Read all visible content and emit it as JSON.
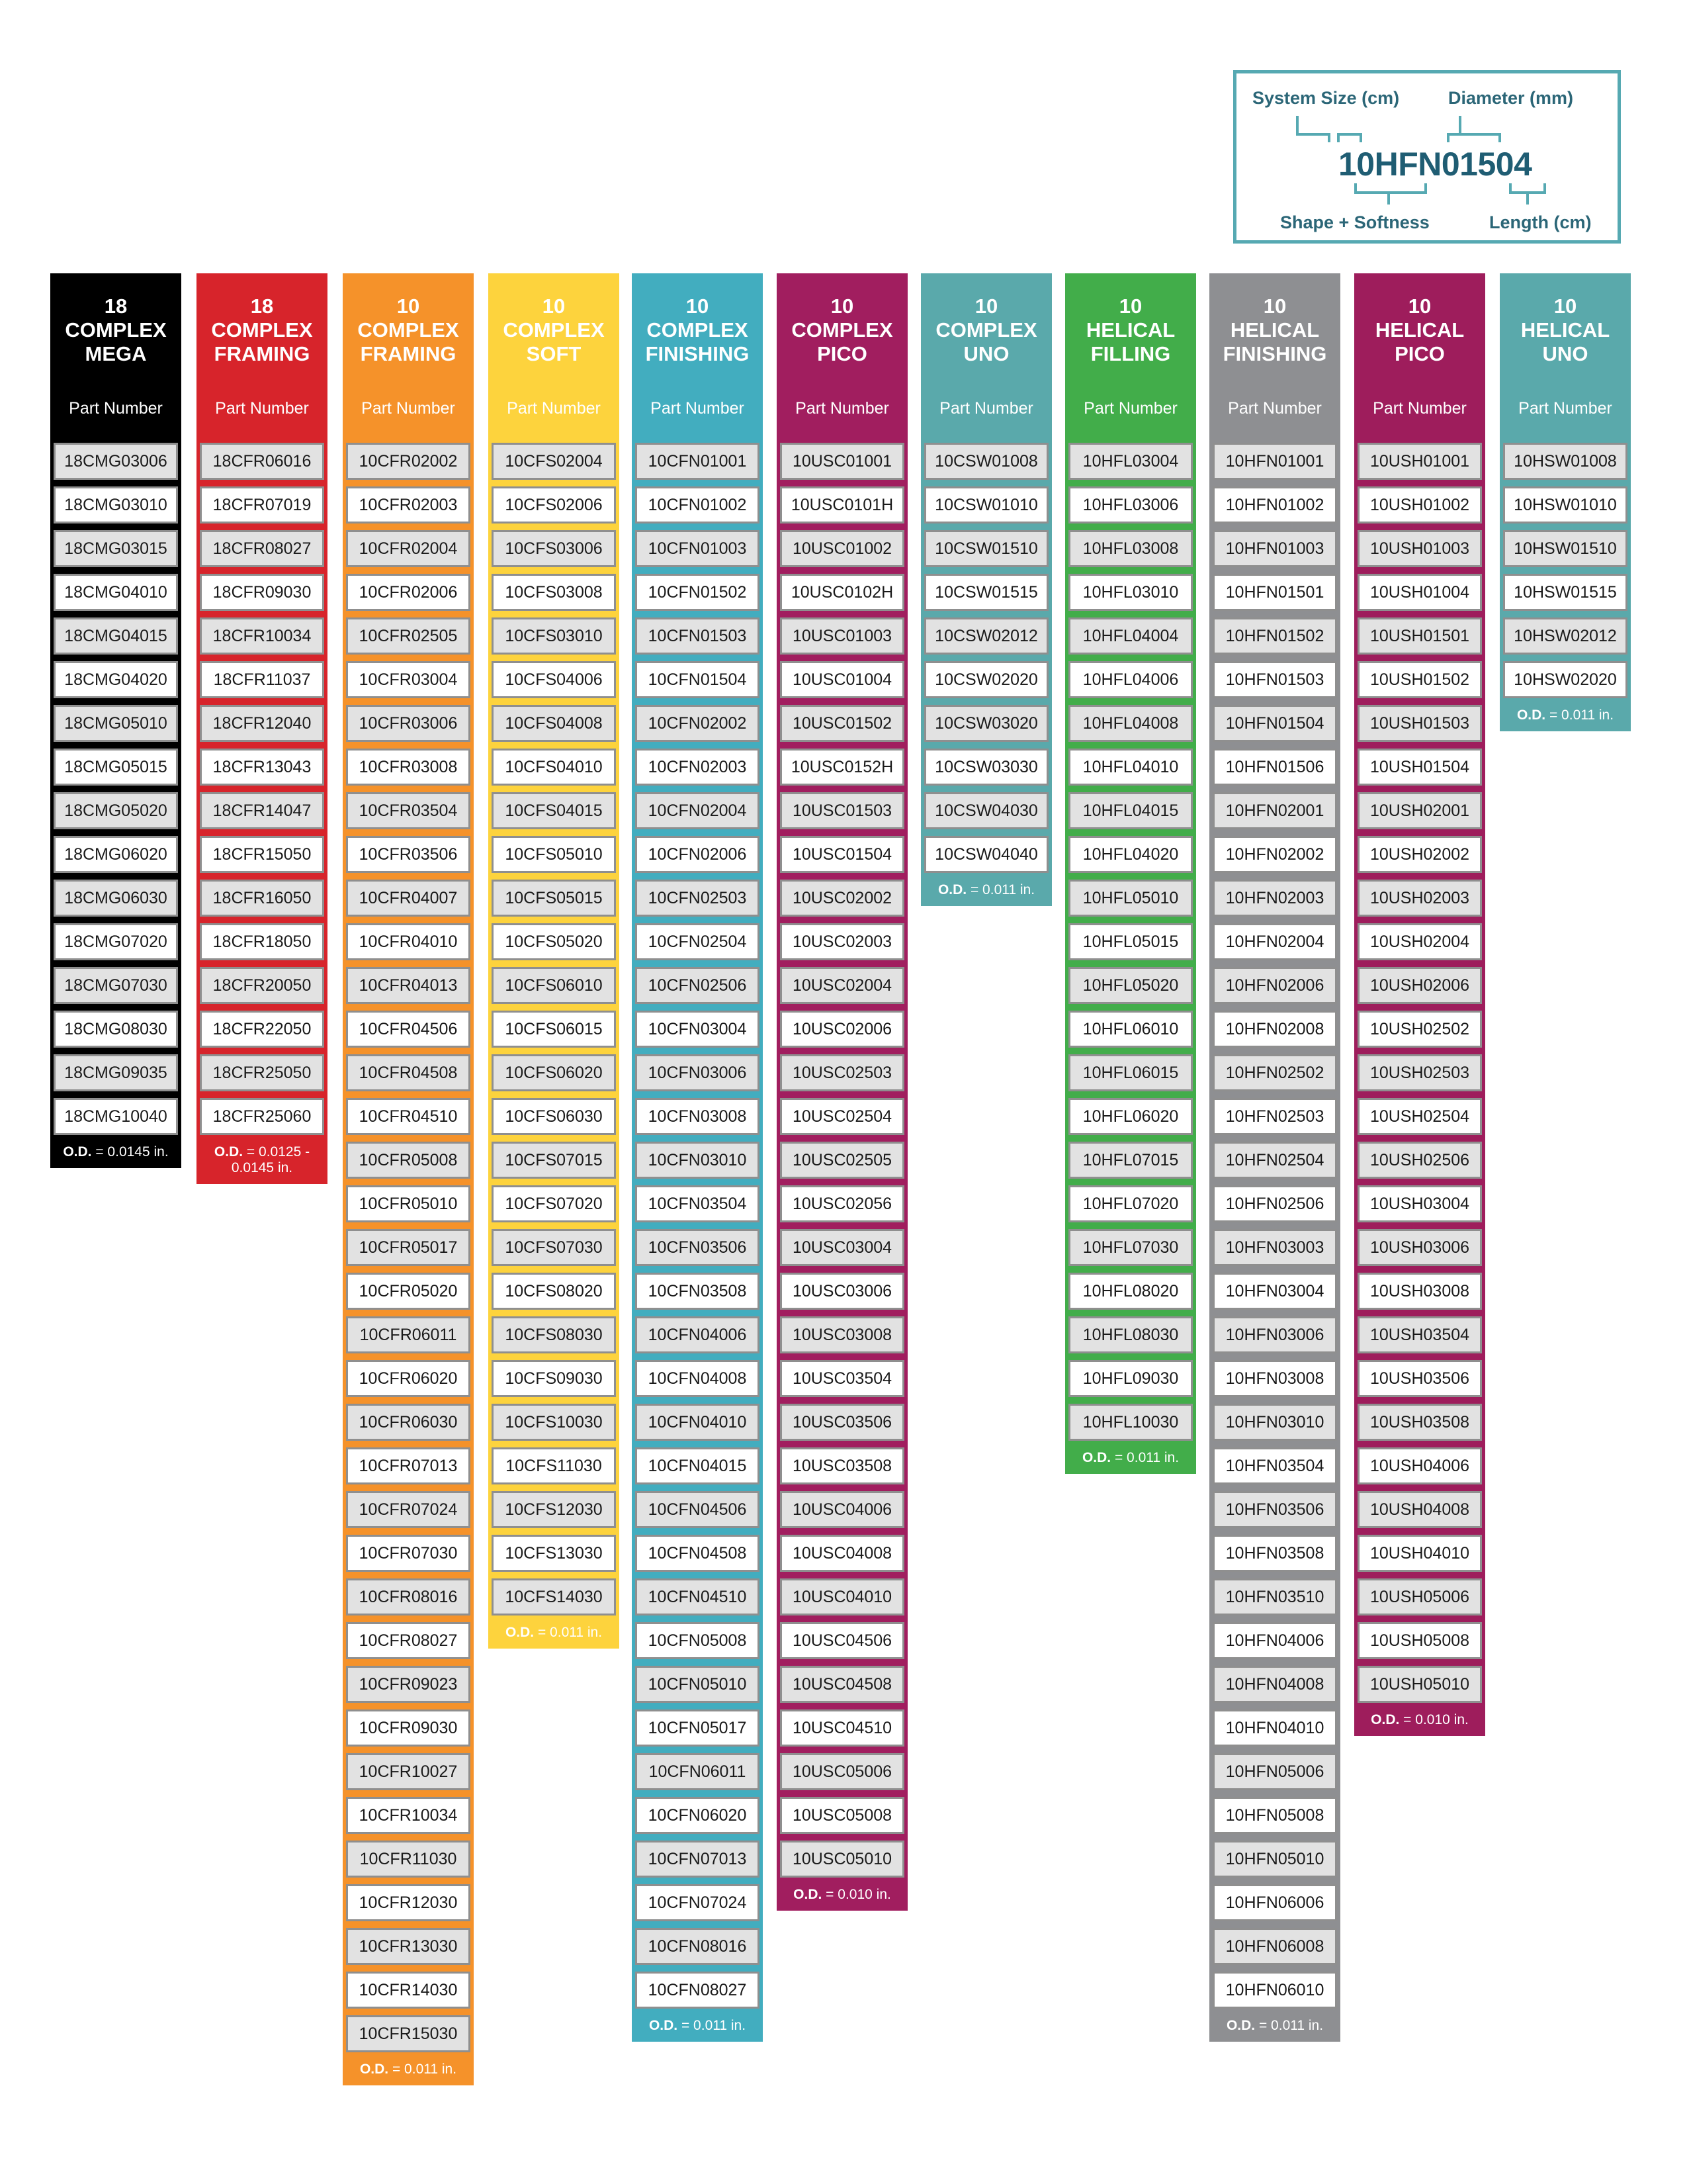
{
  "legend": {
    "system_size": "System Size (cm)",
    "diameter": "Diameter (mm)",
    "code": "10HFN01504",
    "shape_softness": "Shape + Softness",
    "length": "Length (cm)"
  },
  "columns": [
    {
      "size": "18",
      "title": "COMPLEX",
      "subtitle": "MEGA",
      "color": "#000000",
      "header_label": "Part Number",
      "parts": [
        "18CMG03006",
        "18CMG03010",
        "18CMG03015",
        "18CMG04010",
        "18CMG04015",
        "18CMG04020",
        "18CMG05010",
        "18CMG05015",
        "18CMG05020",
        "18CMG06020",
        "18CMG06030",
        "18CMG07020",
        "18CMG07030",
        "18CMG08030",
        "18CMG09035",
        "18CMG10040"
      ],
      "od_label": "O.D.",
      "od_value": "= 0.0145 in."
    },
    {
      "size": "18",
      "title": "COMPLEX",
      "subtitle": "FRAMING",
      "color": "#d7242b",
      "header_label": "Part Number",
      "parts": [
        "18CFR06016",
        "18CFR07019",
        "18CFR08027",
        "18CFR09030",
        "18CFR10034",
        "18CFR11037",
        "18CFR12040",
        "18CFR13043",
        "18CFR14047",
        "18CFR15050",
        "18CFR16050",
        "18CFR18050",
        "18CFR20050",
        "18CFR22050",
        "18CFR25050",
        "18CFR25060"
      ],
      "od_label": "O.D.",
      "od_value": "= 0.0125 - 0.0145 in."
    },
    {
      "size": "10",
      "title": "COMPLEX",
      "subtitle": "FRAMING",
      "color": "#f5922a",
      "header_label": "Part Number",
      "parts": [
        "10CFR02002",
        "10CFR02003",
        "10CFR02004",
        "10CFR02006",
        "10CFR02505",
        "10CFR03004",
        "10CFR03006",
        "10CFR03008",
        "10CFR03504",
        "10CFR03506",
        "10CFR04007",
        "10CFR04010",
        "10CFR04013",
        "10CFR04506",
        "10CFR04508",
        "10CFR04510",
        "10CFR05008",
        "10CFR05010",
        "10CFR05017",
        "10CFR05020",
        "10CFR06011",
        "10CFR06020",
        "10CFR06030",
        "10CFR07013",
        "10CFR07024",
        "10CFR07030",
        "10CFR08016",
        "10CFR08027",
        "10CFR09023",
        "10CFR09030",
        "10CFR10027",
        "10CFR10034",
        "10CFR11030",
        "10CFR12030",
        "10CFR13030",
        "10CFR14030",
        "10CFR15030"
      ],
      "od_label": "O.D.",
      "od_value": "= 0.011 in."
    },
    {
      "size": "10",
      "title": "COMPLEX",
      "subtitle": "SOFT",
      "color": "#fdd33d",
      "header_label": "Part Number",
      "parts": [
        "10CFS02004",
        "10CFS02006",
        "10CFS03006",
        "10CFS03008",
        "10CFS03010",
        "10CFS04006",
        "10CFS04008",
        "10CFS04010",
        "10CFS04015",
        "10CFS05010",
        "10CFS05015",
        "10CFS05020",
        "10CFS06010",
        "10CFS06015",
        "10CFS06020",
        "10CFS06030",
        "10CFS07015",
        "10CFS07020",
        "10CFS07030",
        "10CFS08020",
        "10CFS08030",
        "10CFS09030",
        "10CFS10030",
        "10CFS11030",
        "10CFS12030",
        "10CFS13030",
        "10CFS14030"
      ],
      "od_label": "O.D.",
      "od_value": "= 0.011 in."
    },
    {
      "size": "10",
      "title": "COMPLEX",
      "subtitle": "FINISHING",
      "color": "#42adbf",
      "header_label": "Part Number",
      "parts": [
        "10CFN01001",
        "10CFN01002",
        "10CFN01003",
        "10CFN01502",
        "10CFN01503",
        "10CFN01504",
        "10CFN02002",
        "10CFN02003",
        "10CFN02004",
        "10CFN02006",
        "10CFN02503",
        "10CFN02504",
        "10CFN02506",
        "10CFN03004",
        "10CFN03006",
        "10CFN03008",
        "10CFN03010",
        "10CFN03504",
        "10CFN03506",
        "10CFN03508",
        "10CFN04006",
        "10CFN04008",
        "10CFN04010",
        "10CFN04015",
        "10CFN04506",
        "10CFN04508",
        "10CFN04510",
        "10CFN05008",
        "10CFN05010",
        "10CFN05017",
        "10CFN06011",
        "10CFN06020",
        "10CFN07013",
        "10CFN07024",
        "10CFN08016",
        "10CFN08027"
      ],
      "od_label": "O.D.",
      "od_value": "= 0.011 in."
    },
    {
      "size": "10",
      "title": "COMPLEX",
      "subtitle": "PICO",
      "color": "#a11e5f",
      "header_label": "Part Number",
      "parts": [
        "10USC01001",
        "10USC0101H",
        "10USC01002",
        "10USC0102H",
        "10USC01003",
        "10USC01004",
        "10USC01502",
        "10USC0152H",
        "10USC01503",
        "10USC01504",
        "10USC02002",
        "10USC02003",
        "10USC02004",
        "10USC02006",
        "10USC02503",
        "10USC02504",
        "10USC02505",
        "10USC02056",
        "10USC03004",
        "10USC03006",
        "10USC03008",
        "10USC03504",
        "10USC03506",
        "10USC03508",
        "10USC04006",
        "10USC04008",
        "10USC04010",
        "10USC04506",
        "10USC04508",
        "10USC04510",
        "10USC05006",
        "10USC05008",
        "10USC05010"
      ],
      "od_label": "O.D.",
      "od_value": "= 0.010 in."
    },
    {
      "size": "10",
      "title": "COMPLEX",
      "subtitle": "UNO",
      "color": "#5aa9ab",
      "header_label": "Part Number",
      "parts": [
        "10CSW01008",
        "10CSW01010",
        "10CSW01510",
        "10CSW01515",
        "10CSW02012",
        "10CSW02020",
        "10CSW03020",
        "10CSW03030",
        "10CSW04030",
        "10CSW04040"
      ],
      "od_label": "O.D.",
      "od_value": "= 0.011 in."
    },
    {
      "size": "10",
      "title": "HELICAL",
      "subtitle": "FILLING",
      "color": "#42ad4a",
      "header_label": "Part Number",
      "parts": [
        "10HFL03004",
        "10HFL03006",
        "10HFL03008",
        "10HFL03010",
        "10HFL04004",
        "10HFL04006",
        "10HFL04008",
        "10HFL04010",
        "10HFL04015",
        "10HFL04020",
        "10HFL05010",
        "10HFL05015",
        "10HFL05020",
        "10HFL06010",
        "10HFL06015",
        "10HFL06020",
        "10HFL07015",
        "10HFL07020",
        "10HFL07030",
        "10HFL08020",
        "10HFL08030",
        "10HFL09030",
        "10HFL10030"
      ],
      "od_label": "O.D.",
      "od_value": "= 0.011 in."
    },
    {
      "size": "10",
      "title": "HELICAL",
      "subtitle": "FINISHING",
      "color": "#8e8f92",
      "header_label": "Part Number",
      "parts": [
        "10HFN01001",
        "10HFN01002",
        "10HFN01003",
        "10HFN01501",
        "10HFN01502",
        "10HFN01503",
        "10HFN01504",
        "10HFN01506",
        "10HFN02001",
        "10HFN02002",
        "10HFN02003",
        "10HFN02004",
        "10HFN02006",
        "10HFN02008",
        "10HFN02502",
        "10HFN02503",
        "10HFN02504",
        "10HFN02506",
        "10HFN03003",
        "10HFN03004",
        "10HFN03006",
        "10HFN03008",
        "10HFN03010",
        "10HFN03504",
        "10HFN03506",
        "10HFN03508",
        "10HFN03510",
        "10HFN04006",
        "10HFN04008",
        "10HFN04010",
        "10HFN05006",
        "10HFN05008",
        "10HFN05010",
        "10HFN06006",
        "10HFN06008",
        "10HFN06010"
      ],
      "od_label": "O.D.",
      "od_value": "= 0.011 in."
    },
    {
      "size": "10",
      "title": "HELICAL",
      "subtitle": "PICO",
      "color": "#9e1d5c",
      "header_label": "Part Number",
      "parts": [
        "10USH01001",
        "10USH01002",
        "10USH01003",
        "10USH01004",
        "10USH01501",
        "10USH01502",
        "10USH01503",
        "10USH01504",
        "10USH02001",
        "10USH02002",
        "10USH02003",
        "10USH02004",
        "10USH02006",
        "10USH02502",
        "10USH02503",
        "10USH02504",
        "10USH02506",
        "10USH03004",
        "10USH03006",
        "10USH03008",
        "10USH03504",
        "10USH03506",
        "10USH03508",
        "10USH04006",
        "10USH04008",
        "10USH04010",
        "10USH05006",
        "10USH05008",
        "10USH05010"
      ],
      "od_label": "O.D.",
      "od_value": "= 0.010 in."
    },
    {
      "size": "10",
      "title": "HELICAL",
      "subtitle": "UNO",
      "color": "#5aa9ab",
      "header_label": "Part Number",
      "parts": [
        "10HSW01008",
        "10HSW01010",
        "10HSW01510",
        "10HSW01515",
        "10HSW02012",
        "10HSW02020"
      ],
      "od_label": "O.D.",
      "od_value": "= 0.011 in."
    }
  ]
}
